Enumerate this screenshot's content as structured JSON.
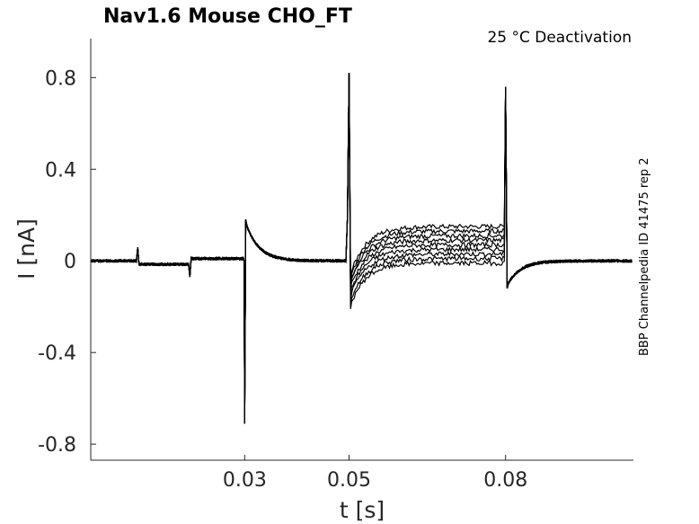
{
  "chart_data": {
    "type": "line",
    "title": "Nav1.6  Mouse  CHO_FT",
    "subtitle": "25 °C  Deactivation",
    "side_note": "BBP Channelpedia ID 41475 rep 2",
    "xlabel": "t [s]",
    "ylabel": "I [nA]",
    "xlim": [
      0.0005,
      0.1045
    ],
    "ylim": [
      -0.87,
      0.97
    ],
    "xticks": [
      0.03,
      0.05,
      0.08
    ],
    "xtick_labels": [
      "0.03",
      "0.05",
      "0.08"
    ],
    "yticks": [
      0.8,
      0.4,
      0,
      -0.4,
      -0.8
    ],
    "ytick_labels": [
      "0.8",
      "0.4",
      "0",
      "-0.4",
      "-0.8"
    ],
    "grid": false,
    "line_color": "#000000",
    "events": {
      "small_step_1": {
        "t": 0.0095,
        "up": 0.06,
        "after": -0.015
      },
      "small_step_2": {
        "t": 0.0195,
        "down": -0.07,
        "after": 0.01
      },
      "activation": {
        "t": 0.03,
        "peak_neg": -0.71,
        "peak_pos": 0.18
      },
      "deactivation_start": {
        "t": 0.05,
        "peak_pos": 0.82,
        "pre_spike": 0.19,
        "min_tail": -0.21
      },
      "step_end": {
        "t": 0.08,
        "peak_pos": 0.76,
        "tail": -0.12
      }
    },
    "series": [
      {
        "plateau": 0.15,
        "tail_min": -0.08
      },
      {
        "plateau": 0.13,
        "tail_min": -0.09
      },
      {
        "plateau": 0.11,
        "tail_min": -0.1
      },
      {
        "plateau": 0.09,
        "tail_min": -0.11
      },
      {
        "plateau": 0.07,
        "tail_min": -0.13
      },
      {
        "plateau": 0.05,
        "tail_min": -0.15
      },
      {
        "plateau": 0.03,
        "tail_min": -0.17
      },
      {
        "plateau": 0.01,
        "tail_min": -0.19
      },
      {
        "plateau": -0.01,
        "tail_min": -0.21
      }
    ]
  }
}
